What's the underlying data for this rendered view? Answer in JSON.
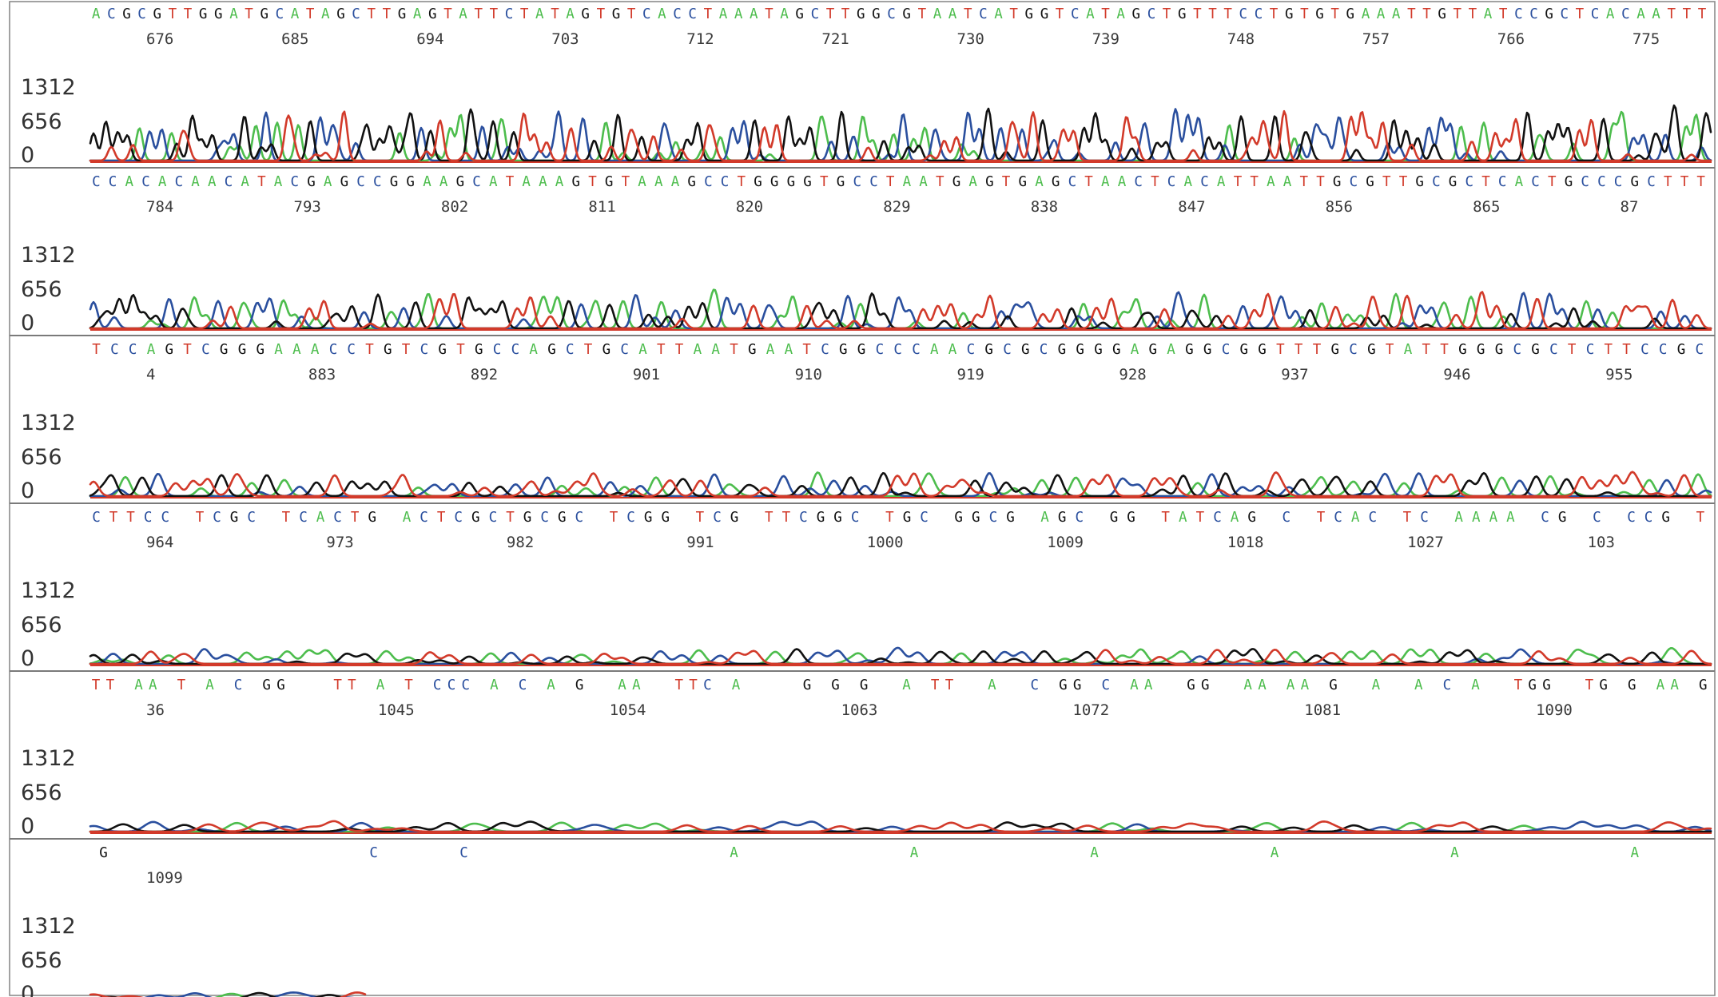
{
  "chart_data": {
    "type": "line",
    "title": "",
    "xlabel": "",
    "ylabel": "",
    "ylim": [
      0,
      1312
    ],
    "y_ticks": [
      "1312",
      "656",
      "0"
    ],
    "grid": false,
    "legend": "none",
    "series": [
      {
        "name": "",
        "base": "A",
        "color": "#4dbd4d"
      },
      {
        "name": "",
        "base": "C",
        "color": "#2a4f9e"
      },
      {
        "name": "",
        "base": "G",
        "color": "#111111"
      },
      {
        "name": "",
        "base": "T",
        "color": "#d23a2a"
      }
    ],
    "rows": [
      {
        "sequence": "ACGCGTTGGATGCATAGCTTGAGTATTCTATAGTGTCACCTAAATAGCTTGGCGTAATCATGGTCATAGCTGTTTCCTGTGTGAAATTGTTATCCGCTCACAATTT",
        "positions": [
          "676",
          "685",
          "694",
          "703",
          "712",
          "721",
          "730",
          "739",
          "748",
          "757",
          "766",
          "775"
        ],
        "amplitude": 1.0,
        "width": 1.0,
        "trace_end": 1.0
      },
      {
        "sequence": "CCACACAACATACGAGCCGGAAGCATAAAGTGTAAAGCCTGGGGTGCCTAATGAGTGAGCTAACTCACATTAATTGCGTTGCGCTCACTGCCCGCTTT",
        "positions": [
          "784",
          "793",
          "802",
          "811",
          "820",
          "829",
          "838",
          "847",
          "856",
          "865",
          "87"
        ],
        "amplitude": 0.72,
        "width": 1.2,
        "trace_end": 1.0
      },
      {
        "sequence": "TCCAGTCGGGAAACCTGTCGTGCCAGCTGCATTAATGAATCGGCCCAACGCGCGGGGAGAGGCGGTTTGCGTATTGGGCGCTCTTCCGC",
        "positions": [
          "4",
          "883",
          "892",
          "901",
          "910",
          "919",
          "928",
          "937",
          "946",
          "955"
        ],
        "amplitude": 0.48,
        "width": 1.5,
        "trace_end": 1.0
      },
      {
        "sequence": "CTTCC TCGC TCACTG ACTCGCTGCGC TCGG TCG TTCGGC TGC GGCG AGC GG TATCAG C TCAC TC AAAA CG C CCG T",
        "positions": [
          "964",
          "973",
          "982",
          "991",
          "1000",
          "1009",
          "1018",
          "1027",
          "103"
        ],
        "amplitude": 0.3,
        "width": 1.8,
        "trace_end": 1.0
      },
      {
        "sequence": "TT AA T A C GG   TT A T CCC A C A G  AA  TTC A    G G G  A TT  A  C GG C AA  GG  AA AA G  A  A C A  TGG  TG G AA G",
        "positions": [
          "36",
          "1045",
          "1054",
          "1063",
          "1072",
          "1081",
          "1090"
        ],
        "amplitude": 0.2,
        "width": 2.6,
        "trace_end": 1.0
      },
      {
        "sequence": "G  CC  A A A A A A",
        "positions": [
          "1099"
        ],
        "amplitude": 0.15,
        "width": 3.0,
        "trace_end": 0.17
      }
    ]
  }
}
